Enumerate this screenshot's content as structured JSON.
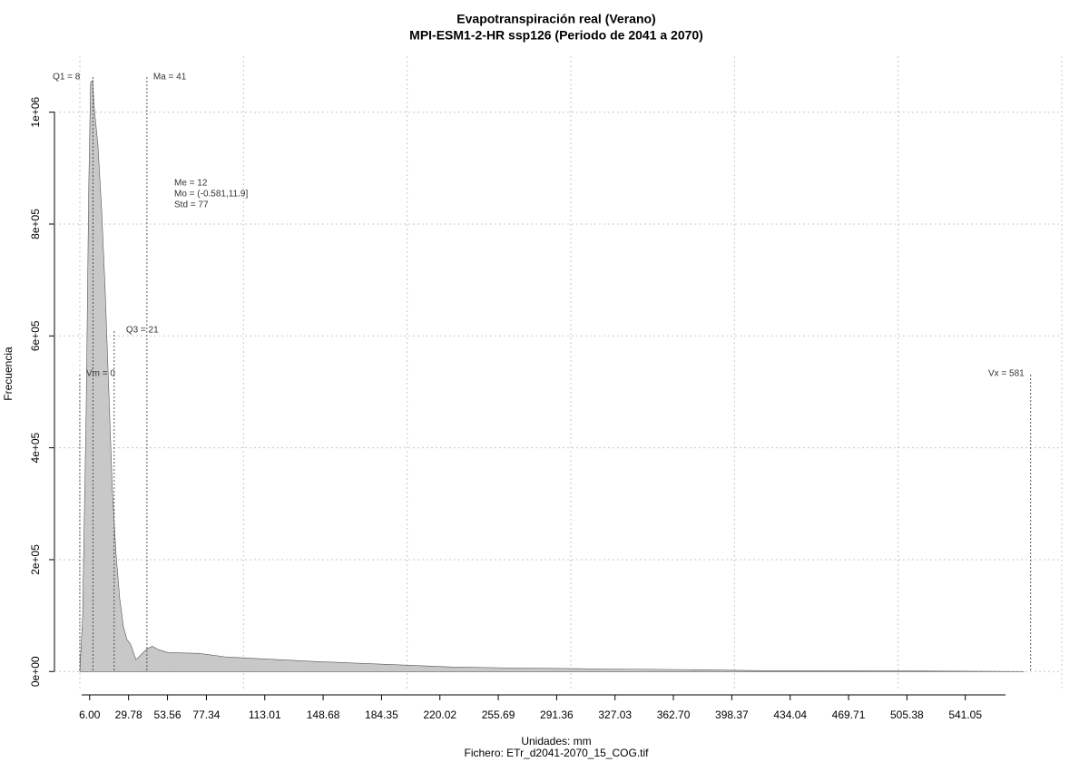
{
  "chart_data": {
    "type": "area",
    "title": "Evapotranspiración real (Verano)",
    "subtitle": "MPI-ESM1-2-HR ssp126 (Periodo de 2041 a 2070)",
    "x_label": "Unidades: mm",
    "file_label": "Fichero: ETr_d2041-2070_15_COG.tif",
    "y_label": "Frecuencia",
    "color": "#c8c8c8",
    "x": [
      0,
      1.7,
      3.9,
      5.5,
      6.6,
      7.8,
      8.9,
      11.1,
      13.3,
      15.5,
      17.7,
      19.9,
      22.1,
      24.4,
      26.6,
      28.8,
      31,
      34.3,
      37.1,
      41,
      44.3,
      48.2,
      53.7,
      73,
      89.7,
      111.8,
      145,
      172.8,
      200.4,
      228,
      261,
      311,
      377.6,
      416.4,
      527,
      577
    ],
    "values": [
      0,
      97000,
      470000,
      875000,
      1053000,
      1057000,
      1005000,
      940000,
      827000,
      681000,
      502000,
      324000,
      211000,
      130000,
      81000,
      57000,
      49000,
      21000,
      29000,
      40500,
      45000,
      39000,
      34000,
      32400,
      26000,
      22700,
      17800,
      14600,
      11300,
      8100,
      6500,
      4900,
      3200,
      1600,
      800,
      0
    ],
    "xlim": [
      -15.5,
      600
    ],
    "ylim": [
      -32000,
      1100000
    ],
    "xticks": [
      {
        "value": 6,
        "label": "6.00"
      },
      29.78,
      53.56,
      77.34,
      113.01,
      148.68,
      184.35,
      220.02,
      255.69,
      291.36,
      327.03,
      {
        "value": 362.7,
        "label": "362.70"
      },
      398.37,
      434.04,
      469.71,
      505.38,
      541.05
    ],
    "yticks": [
      {
        "value": 0,
        "label": "0e+00"
      },
      {
        "value": 200000,
        "label": "2e+05"
      },
      {
        "value": 400000,
        "label": "4e+05"
      },
      {
        "value": 600000,
        "label": "6e+05"
      },
      {
        "value": 800000,
        "label": "8e+05"
      },
      {
        "value": 1000000,
        "label": "1e+06"
      }
    ],
    "x_grid": [
      0,
      100,
      200,
      300,
      400,
      500,
      600
    ],
    "grid": true,
    "stat_lines": [
      {
        "label": "Vm = 0",
        "value": 0
      },
      {
        "label": "Q1 = 8",
        "value": 8
      },
      {
        "label": "Q3 = 21",
        "value": 21
      },
      {
        "label": "Ma = 41",
        "value": 41
      },
      {
        "label": "Vx = 581",
        "value": 581
      }
    ],
    "stats_text": [
      "Me = 12",
      "Mo = (-0.581,11.9]",
      "Std = 77"
    ]
  }
}
